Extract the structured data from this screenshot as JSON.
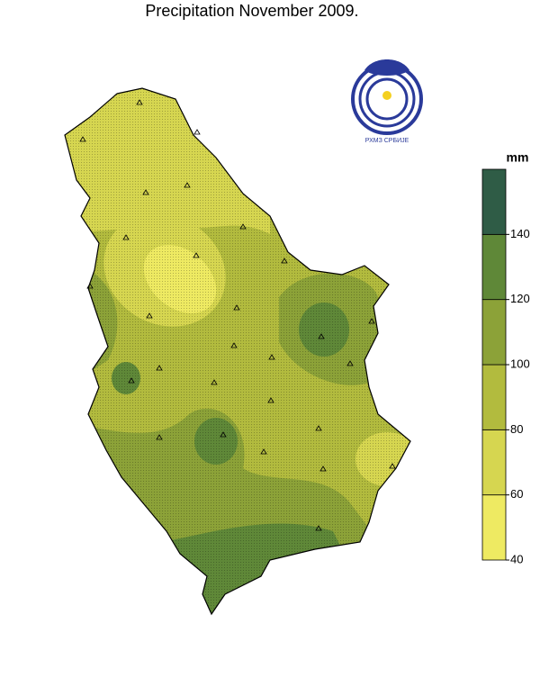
{
  "title": "Precipitation November 2009.",
  "logo_text": "РХМЗ СРБИЈЕ",
  "legend": {
    "unit": "mm",
    "range": [
      40,
      160
    ],
    "ticks": [
      40,
      60,
      80,
      100,
      120,
      140
    ],
    "colors": [
      "#eeea62",
      "#d6d650",
      "#b2bb3e",
      "#8ca238",
      "#5f8838",
      "#2f5c46"
    ]
  }
}
